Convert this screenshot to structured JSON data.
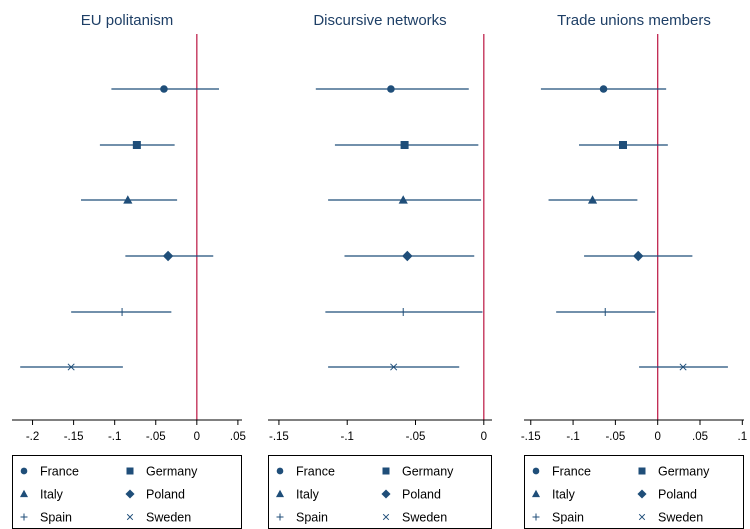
{
  "colors": {
    "series": "#1f4e79",
    "refline": "#c0264f",
    "axis": "#000000"
  },
  "legend": [
    {
      "label": "France",
      "marker": "circle"
    },
    {
      "label": "Germany",
      "marker": "square"
    },
    {
      "label": "Italy",
      "marker": "triangle"
    },
    {
      "label": "Poland",
      "marker": "diamond"
    },
    {
      "label": "Spain",
      "marker": "plus"
    },
    {
      "label": "Sweden",
      "marker": "cross"
    }
  ],
  "chart_data": [
    {
      "type": "scatter",
      "title": "EU politanism",
      "xlim": [
        -0.225,
        0.055
      ],
      "xticks": [
        -0.2,
        -0.15,
        -0.1,
        -0.05,
        0,
        0.05
      ],
      "xtick_labels": [
        "-.2",
        "-.15",
        "-.1",
        "-.05",
        "0",
        ".05"
      ],
      "reference_line": 0,
      "series": [
        {
          "name": "France",
          "estimate": -0.04,
          "ci": [
            -0.104,
            0.027
          ]
        },
        {
          "name": "Germany",
          "estimate": -0.073,
          "ci": [
            -0.118,
            -0.027
          ]
        },
        {
          "name": "Italy",
          "estimate": -0.084,
          "ci": [
            -0.141,
            -0.024
          ]
        },
        {
          "name": "Poland",
          "estimate": -0.035,
          "ci": [
            -0.087,
            0.02
          ]
        },
        {
          "name": "Spain",
          "estimate": -0.091,
          "ci": [
            -0.153,
            -0.031
          ]
        },
        {
          "name": "Sweden",
          "estimate": -0.153,
          "ci": [
            -0.215,
            -0.09
          ]
        }
      ]
    },
    {
      "type": "scatter",
      "title": "Discursive networks",
      "xlim": [
        -0.158,
        0.006
      ],
      "xticks": [
        -0.15,
        -0.1,
        -0.05,
        0
      ],
      "xtick_labels": [
        "-.15",
        "-.1",
        "-.05",
        "0"
      ],
      "reference_line": 0,
      "series": [
        {
          "name": "France",
          "estimate": -0.068,
          "ci": [
            -0.123,
            -0.011
          ]
        },
        {
          "name": "Germany",
          "estimate": -0.058,
          "ci": [
            -0.109,
            -0.004
          ]
        },
        {
          "name": "Italy",
          "estimate": -0.059,
          "ci": [
            -0.114,
            -0.002
          ]
        },
        {
          "name": "Poland",
          "estimate": -0.056,
          "ci": [
            -0.102,
            -0.007
          ]
        },
        {
          "name": "Spain",
          "estimate": -0.059,
          "ci": [
            -0.116,
            -0.001
          ]
        },
        {
          "name": "Sweden",
          "estimate": -0.066,
          "ci": [
            -0.114,
            -0.018
          ]
        }
      ]
    },
    {
      "type": "scatter",
      "title": "Trade unions members",
      "xlim": [
        -0.158,
        0.102
      ],
      "xticks": [
        -0.15,
        -0.1,
        -0.05,
        0,
        0.05,
        0.1
      ],
      "xtick_labels": [
        "-.15",
        "-.1",
        "-.05",
        "0",
        ".05",
        ".1"
      ],
      "reference_line": 0,
      "series": [
        {
          "name": "France",
          "estimate": -0.064,
          "ci": [
            -0.138,
            0.01
          ]
        },
        {
          "name": "Germany",
          "estimate": -0.041,
          "ci": [
            -0.093,
            0.012
          ]
        },
        {
          "name": "Italy",
          "estimate": -0.077,
          "ci": [
            -0.129,
            -0.024
          ]
        },
        {
          "name": "Poland",
          "estimate": -0.023,
          "ci": [
            -0.087,
            0.041
          ]
        },
        {
          "name": "Spain",
          "estimate": -0.062,
          "ci": [
            -0.12,
            -0.003
          ]
        },
        {
          "name": "Sweden",
          "estimate": 0.03,
          "ci": [
            -0.022,
            0.083
          ]
        }
      ]
    }
  ]
}
